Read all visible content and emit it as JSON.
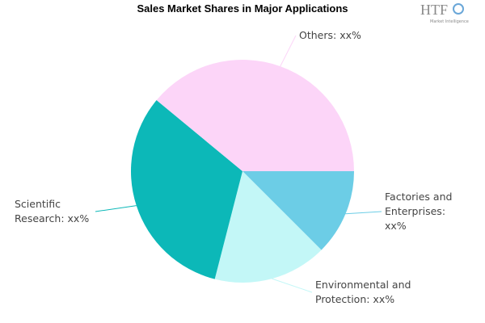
{
  "chart_data": {
    "type": "pie",
    "title": "Sales Market Shares in Major Applications",
    "categories": [
      "Factories and Enterprises: xx%",
      "Environmental and Protection: xx%",
      "Scientific Research: xx%",
      "Others: xx%"
    ],
    "values": [
      12.5,
      16.5,
      32,
      39
    ],
    "colors": [
      "#6ccde6",
      "#c3f7f7",
      "#0cb8b8",
      "#fcd5f8"
    ]
  },
  "logo": {
    "text": "HTF",
    "subtitle": "Market Intelligence"
  }
}
